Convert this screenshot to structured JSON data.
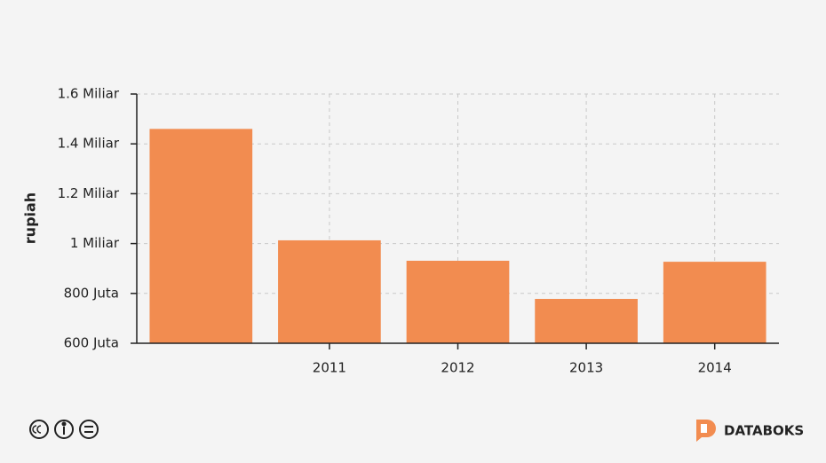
{
  "chart_data": {
    "type": "bar",
    "y_label": "rupiah",
    "categories": [
      null,
      "2011",
      "2012",
      "2013",
      "2014"
    ],
    "values": [
      1460000000,
      1013000000,
      931000000,
      778000000,
      927000000
    ],
    "color": "#f28c50",
    "ylim": [
      600000000,
      1600000000
    ],
    "yticks": [
      {
        "value": 600000000,
        "label": "600 Juta"
      },
      {
        "value": 800000000,
        "label": "800 Juta"
      },
      {
        "value": 1000000000,
        "label": "1 Miliar"
      },
      {
        "value": 1200000000,
        "label": "1.2 Miliar"
      },
      {
        "value": 1400000000,
        "label": "1.4 Miliar"
      },
      {
        "value": 1600000000,
        "label": "1.6 Miliar"
      }
    ],
    "grid": true
  },
  "footer": {
    "brand": "DATABOKS"
  }
}
